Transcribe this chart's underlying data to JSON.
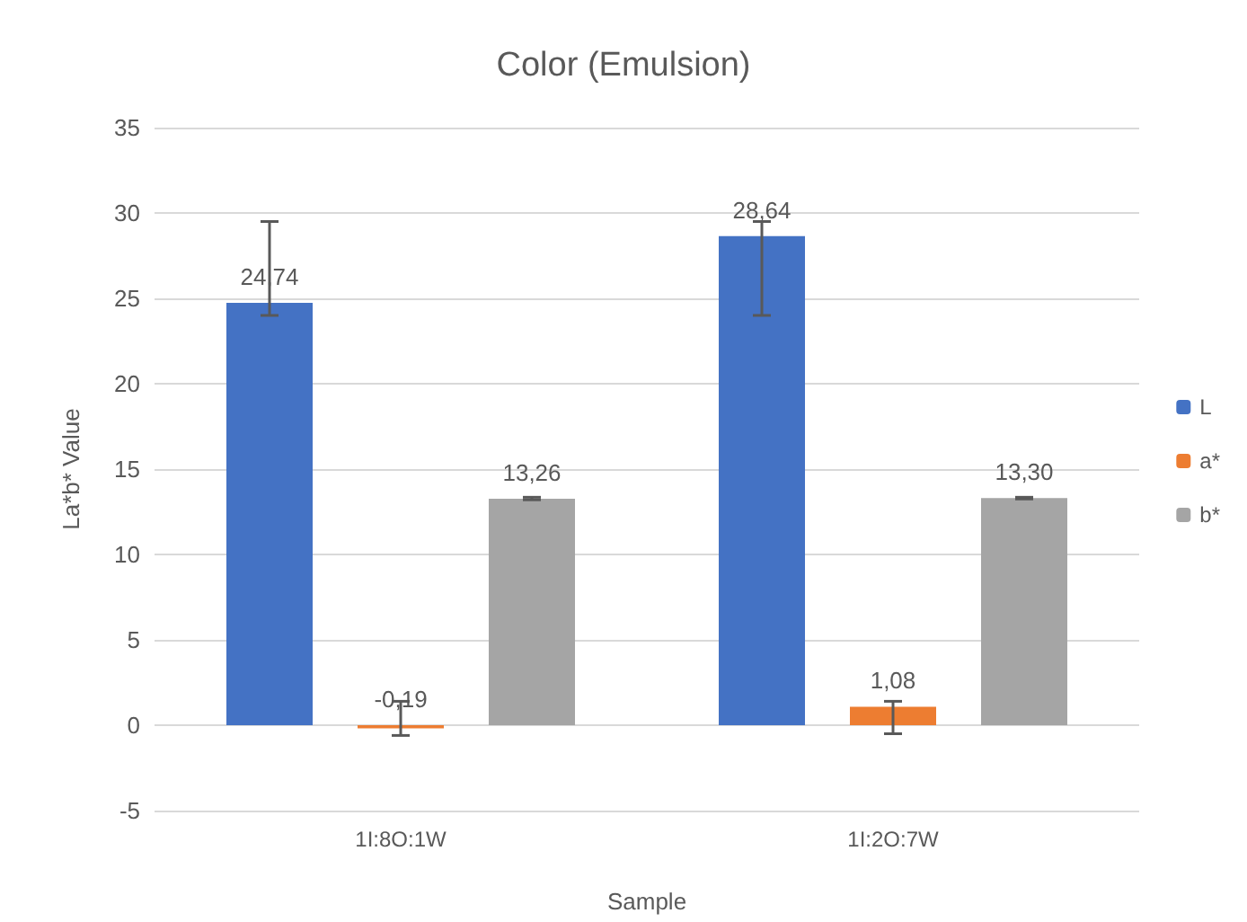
{
  "chart_data": {
    "type": "bar",
    "title": "Color (Emulsion)",
    "xlabel": "Sample",
    "ylabel": "La*b* Value",
    "categories": [
      "1I:8O:1W",
      "1I:2O:7W"
    ],
    "series": [
      {
        "name": "L",
        "color": "#4472c4",
        "values": [
          24.74,
          28.64
        ],
        "value_labels": [
          "24,74",
          "28,64"
        ],
        "errors": [
          [
            24.0,
            29.5
          ],
          [
            24.0,
            29.5
          ]
        ]
      },
      {
        "name": "a*",
        "color": "#ed7d31",
        "values": [
          -0.19,
          1.08
        ],
        "value_labels": [
          "-0,19",
          "1,08"
        ],
        "errors": [
          [
            -0.6,
            1.4
          ],
          [
            -0.5,
            1.4
          ]
        ]
      },
      {
        "name": "b*",
        "color": "#a5a5a5",
        "values": [
          13.26,
          13.3
        ],
        "value_labels": [
          "13,26",
          "13,30"
        ],
        "errors": [
          [
            13.2,
            13.35
          ],
          [
            13.25,
            13.35
          ]
        ]
      }
    ],
    "ylim": [
      -5,
      35
    ],
    "yticks": [
      -5,
      0,
      5,
      10,
      15,
      20,
      25,
      30,
      35
    ],
    "grid": "y",
    "legend": "right"
  }
}
